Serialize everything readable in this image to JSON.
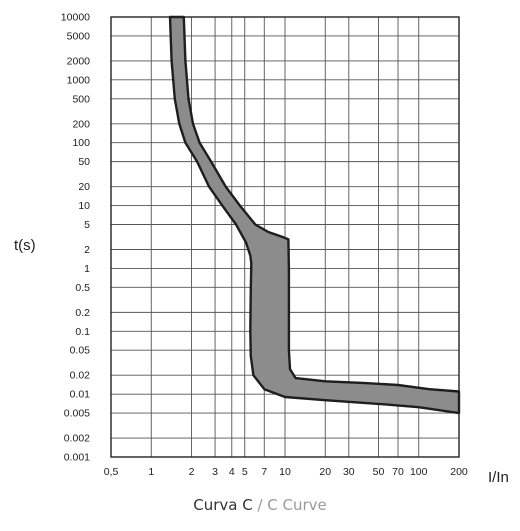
{
  "chart_data": {
    "type": "area",
    "title": "",
    "xlabel": "I/In",
    "ylabel": "t(s)",
    "x_scale": "log",
    "y_scale": "log",
    "xlim": [
      0.5,
      200
    ],
    "ylim": [
      0.001,
      10000
    ],
    "grid": true,
    "x_ticks": [
      {
        "value": 0.5,
        "label": "0,5"
      },
      {
        "value": 1,
        "label": "1"
      },
      {
        "value": 2,
        "label": "2"
      },
      {
        "value": 3,
        "label": "3"
      },
      {
        "value": 4,
        "label": "4"
      },
      {
        "value": 5,
        "label": "5"
      },
      {
        "value": 7,
        "label": "7"
      },
      {
        "value": 10,
        "label": "10"
      },
      {
        "value": 20,
        "label": "20"
      },
      {
        "value": 30,
        "label": "30"
      },
      {
        "value": 50,
        "label": "50"
      },
      {
        "value": 70,
        "label": "70"
      },
      {
        "value": 100,
        "label": "100"
      },
      {
        "value": 200,
        "label": "200"
      }
    ],
    "y_ticks": [
      {
        "value": 10000,
        "label": "10000"
      },
      {
        "value": 5000,
        "label": "5000"
      },
      {
        "value": 2000,
        "label": "2000"
      },
      {
        "value": 1000,
        "label": "1000"
      },
      {
        "value": 500,
        "label": "500"
      },
      {
        "value": 200,
        "label": "200"
      },
      {
        "value": 100,
        "label": "100"
      },
      {
        "value": 50,
        "label": "50"
      },
      {
        "value": 20,
        "label": "20"
      },
      {
        "value": 10,
        "label": "10"
      },
      {
        "value": 5,
        "label": "5"
      },
      {
        "value": 2,
        "label": "2"
      },
      {
        "value": 1,
        "label": "1"
      },
      {
        "value": 0.5,
        "label": "0.5"
      },
      {
        "value": 0.2,
        "label": "0.2"
      },
      {
        "value": 0.1,
        "label": "0.1"
      },
      {
        "value": 0.05,
        "label": "0.05"
      },
      {
        "value": 0.02,
        "label": "0.02"
      },
      {
        "value": 0.01,
        "label": "0.01"
      },
      {
        "value": 0.005,
        "label": "0.005"
      },
      {
        "value": 0.002,
        "label": "0.002"
      },
      {
        "value": 0.001,
        "label": "0.001"
      }
    ],
    "band": {
      "lower": [
        [
          1.38,
          10000
        ],
        [
          1.42,
          2000
        ],
        [
          1.5,
          500
        ],
        [
          1.62,
          200
        ],
        [
          1.8,
          100
        ],
        [
          2.2,
          50
        ],
        [
          2.7,
          20
        ],
        [
          3.4,
          10
        ],
        [
          4.3,
          5
        ],
        [
          5.1,
          2.6
        ],
        [
          5.5,
          1.6
        ],
        [
          5.6,
          1.2
        ],
        [
          5.55,
          0.5
        ],
        [
          5.5,
          0.1
        ],
        [
          5.55,
          0.04
        ],
        [
          5.8,
          0.02
        ],
        [
          7,
          0.012
        ],
        [
          10,
          0.009
        ],
        [
          20,
          0.008
        ],
        [
          50,
          0.007
        ],
        [
          100,
          0.0062
        ],
        [
          200,
          0.005
        ]
      ],
      "upper": [
        [
          1.75,
          10000
        ],
        [
          1.8,
          2000
        ],
        [
          1.9,
          500
        ],
        [
          2.05,
          200
        ],
        [
          2.3,
          100
        ],
        [
          2.8,
          50
        ],
        [
          3.6,
          20
        ],
        [
          4.6,
          10
        ],
        [
          6,
          5
        ],
        [
          7.5,
          3.8
        ],
        [
          9.5,
          3.2
        ],
        [
          10.6,
          2.9
        ],
        [
          10.7,
          1
        ],
        [
          10.7,
          0.2
        ],
        [
          10.7,
          0.05
        ],
        [
          10.9,
          0.025
        ],
        [
          12,
          0.018
        ],
        [
          20,
          0.016
        ],
        [
          40,
          0.015
        ],
        [
          70,
          0.014
        ],
        [
          120,
          0.012
        ],
        [
          200,
          0.011
        ]
      ],
      "fill": "#8c8c8c",
      "stroke": "#1e1e1e"
    }
  },
  "caption": {
    "part1": "Curva C",
    "separator": " / ",
    "part2": "C Curve"
  }
}
